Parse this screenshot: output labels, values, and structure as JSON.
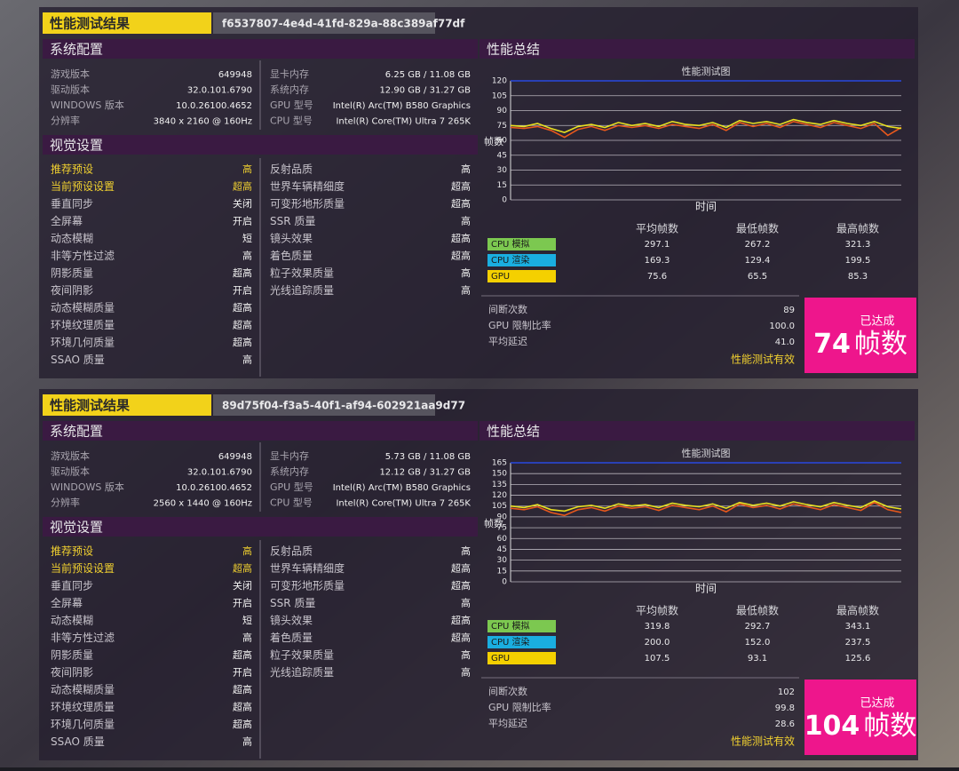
{
  "panels": [
    {
      "title": "性能测试结果",
      "run_id": "f6537807-4e4d-41fd-829a-88c389af77df",
      "system_header": "系统配置",
      "system_left": [
        [
          "游戏版本",
          "649948"
        ],
        [
          "驱动版本",
          "32.0.101.6790"
        ],
        [
          "WINDOWS 版本",
          "10.0.26100.4652"
        ],
        [
          "分辨率",
          "3840 x 2160 @ 160Hz"
        ]
      ],
      "system_right": [
        [
          "显卡内存",
          "6.25 GB / 11.08 GB"
        ],
        [
          "系统内存",
          "12.90 GB / 31.27 GB"
        ],
        [
          "GPU 型号",
          "Intel(R) Arc(TM) B580 Graphics"
        ],
        [
          "CPU 型号",
          "Intel(R) Core(TM) Ultra 7 265K"
        ]
      ],
      "visual_header": "视觉设置",
      "visual_left": [
        [
          "推荐预设",
          "高"
        ],
        [
          "当前预设设置",
          "超高"
        ],
        [
          "垂直同步",
          "关闭"
        ],
        [
          "全屏幕",
          "开启"
        ],
        [
          "动态模糊",
          "短"
        ],
        [
          "非等方性过滤",
          "高"
        ],
        [
          "阴影质量",
          "超高"
        ],
        [
          "夜间阴影",
          "开启"
        ],
        [
          "动态模糊质量",
          "超高"
        ],
        [
          "环境纹理质量",
          "超高"
        ],
        [
          "环境几何质量",
          "超高"
        ],
        [
          "SSAO 质量",
          "高"
        ]
      ],
      "visual_right": [
        [
          "反射品质",
          "高"
        ],
        [
          "世界车辆精细度",
          "超高"
        ],
        [
          "可变形地形质量",
          "超高"
        ],
        [
          "SSR 质量",
          "高"
        ],
        [
          "镜头效果",
          "超高"
        ],
        [
          "着色质量",
          "超高"
        ],
        [
          "粒子效果质量",
          "高"
        ],
        [
          "光线追踪质量",
          "高"
        ]
      ],
      "summary_header": "性能总结",
      "chart_data": {
        "type": "line",
        "title": "性能测试图",
        "y_label": "帧数",
        "x_label": "时间",
        "ylim": [
          0,
          120
        ],
        "yticks": [
          0,
          15,
          30,
          45,
          60,
          75,
          90,
          105,
          120
        ],
        "grid": true,
        "series": [
          {
            "color": "#2848e0",
            "values": [
              120,
              120
            ]
          },
          {
            "color": "#e8581c",
            "values": [
              73,
              72,
              74,
              70,
              63,
              71,
              74,
              70,
              75,
              73,
              75,
              72,
              76,
              74,
              72,
              76,
              70,
              78,
              74,
              77,
              73,
              79,
              76,
              73,
              78,
              75,
              72,
              77,
              65,
              73
            ]
          },
          {
            "color": "#e8e020",
            "values": [
              75,
              74,
              77,
              72,
              68,
              74,
              76,
              73,
              78,
              75,
              77,
              74,
              79,
              76,
              75,
              78,
              73,
              80,
              77,
              79,
              76,
              81,
              78,
              76,
              80,
              77,
              75,
              79,
              74,
              72
            ]
          }
        ]
      },
      "table": {
        "columns": [
          "平均帧数",
          "最低帧数",
          "最高帧数"
        ],
        "rows": [
          {
            "label": "CPU 模拟",
            "color": "#7cc850",
            "values": [
              "297.1",
              "267.2",
              "321.3"
            ]
          },
          {
            "label": "CPU 渲染",
            "color": "#1aaee0",
            "values": [
              "169.3",
              "129.4",
              "199.5"
            ]
          },
          {
            "label": "GPU",
            "color": "#f4d000",
            "values": [
              "75.6",
              "65.5",
              "85.3"
            ]
          }
        ]
      },
      "stats": [
        [
          "间断次数",
          "89"
        ],
        [
          "GPU 限制比率",
          "100.0"
        ],
        [
          "平均延迟",
          "41.0"
        ]
      ],
      "status": "性能测试有效",
      "badge": {
        "caption": "已达成",
        "value": 74,
        "unit": "帧数"
      }
    },
    {
      "title": "性能测试结果",
      "run_id": "89d75f04-f3a5-40f1-af94-602921aa9d77",
      "system_header": "系统配置",
      "system_left": [
        [
          "游戏版本",
          "649948"
        ],
        [
          "驱动版本",
          "32.0.101.6790"
        ],
        [
          "WINDOWS 版本",
          "10.0.26100.4652"
        ],
        [
          "分辨率",
          "2560 x 1440 @ 160Hz"
        ]
      ],
      "system_right": [
        [
          "显卡内存",
          "5.73 GB / 11.08 GB"
        ],
        [
          "系统内存",
          "12.12 GB / 31.27 GB"
        ],
        [
          "GPU 型号",
          "Intel(R) Arc(TM) B580 Graphics"
        ],
        [
          "CPU 型号",
          "Intel(R) Core(TM) Ultra 7 265K"
        ]
      ],
      "visual_header": "视觉设置",
      "visual_left": [
        [
          "推荐预设",
          "高"
        ],
        [
          "当前预设设置",
          "超高"
        ],
        [
          "垂直同步",
          "关闭"
        ],
        [
          "全屏幕",
          "开启"
        ],
        [
          "动态模糊",
          "短"
        ],
        [
          "非等方性过滤",
          "高"
        ],
        [
          "阴影质量",
          "超高"
        ],
        [
          "夜间阴影",
          "开启"
        ],
        [
          "动态模糊质量",
          "超高"
        ],
        [
          "环境纹理质量",
          "超高"
        ],
        [
          "环境几何质量",
          "超高"
        ],
        [
          "SSAO 质量",
          "高"
        ]
      ],
      "visual_right": [
        [
          "反射品质",
          "高"
        ],
        [
          "世界车辆精细度",
          "超高"
        ],
        [
          "可变形地形质量",
          "超高"
        ],
        [
          "SSR 质量",
          "高"
        ],
        [
          "镜头效果",
          "超高"
        ],
        [
          "着色质量",
          "超高"
        ],
        [
          "粒子效果质量",
          "高"
        ],
        [
          "光线追踪质量",
          "高"
        ]
      ],
      "summary_header": "性能总结",
      "chart_data": {
        "type": "line",
        "title": "性能测试图",
        "y_label": "帧数",
        "x_label": "时间",
        "ylim": [
          0,
          165
        ],
        "yticks": [
          0,
          15,
          30,
          45,
          60,
          75,
          90,
          105,
          120,
          135,
          150,
          165
        ],
        "grid": true,
        "series": [
          {
            "color": "#2848e0",
            "values": [
              165,
              165
            ]
          },
          {
            "color": "#e8581c",
            "values": [
              102,
              100,
              104,
              96,
              92,
              100,
              103,
              98,
              105,
              102,
              104,
              99,
              106,
              103,
              100,
              105,
              97,
              108,
              103,
              106,
              101,
              108,
              104,
              100,
              107,
              103,
              99,
              110,
              100,
              96
            ]
          },
          {
            "color": "#e8e020",
            "values": [
              105,
              103,
              107,
              100,
              98,
              104,
              106,
              102,
              108,
              105,
              107,
              103,
              109,
              106,
              104,
              108,
              102,
              110,
              106,
              109,
              105,
              111,
              107,
              104,
              110,
              106,
              103,
              112,
              104,
              101
            ]
          }
        ]
      },
      "table": {
        "columns": [
          "平均帧数",
          "最低帧数",
          "最高帧数"
        ],
        "rows": [
          {
            "label": "CPU 模拟",
            "color": "#7cc850",
            "values": [
              "319.8",
              "292.7",
              "343.1"
            ]
          },
          {
            "label": "CPU 渲染",
            "color": "#1aaee0",
            "values": [
              "200.0",
              "152.0",
              "237.5"
            ]
          },
          {
            "label": "GPU",
            "color": "#f4d000",
            "values": [
              "107.5",
              "93.1",
              "125.6"
            ]
          }
        ]
      },
      "stats": [
        [
          "间断次数",
          "102"
        ],
        [
          "GPU 限制比率",
          "99.8"
        ],
        [
          "平均延迟",
          "28.6"
        ]
      ],
      "status": "性能测试有效",
      "badge": {
        "caption": "已达成",
        "value": 104,
        "unit": "帧数"
      }
    }
  ]
}
